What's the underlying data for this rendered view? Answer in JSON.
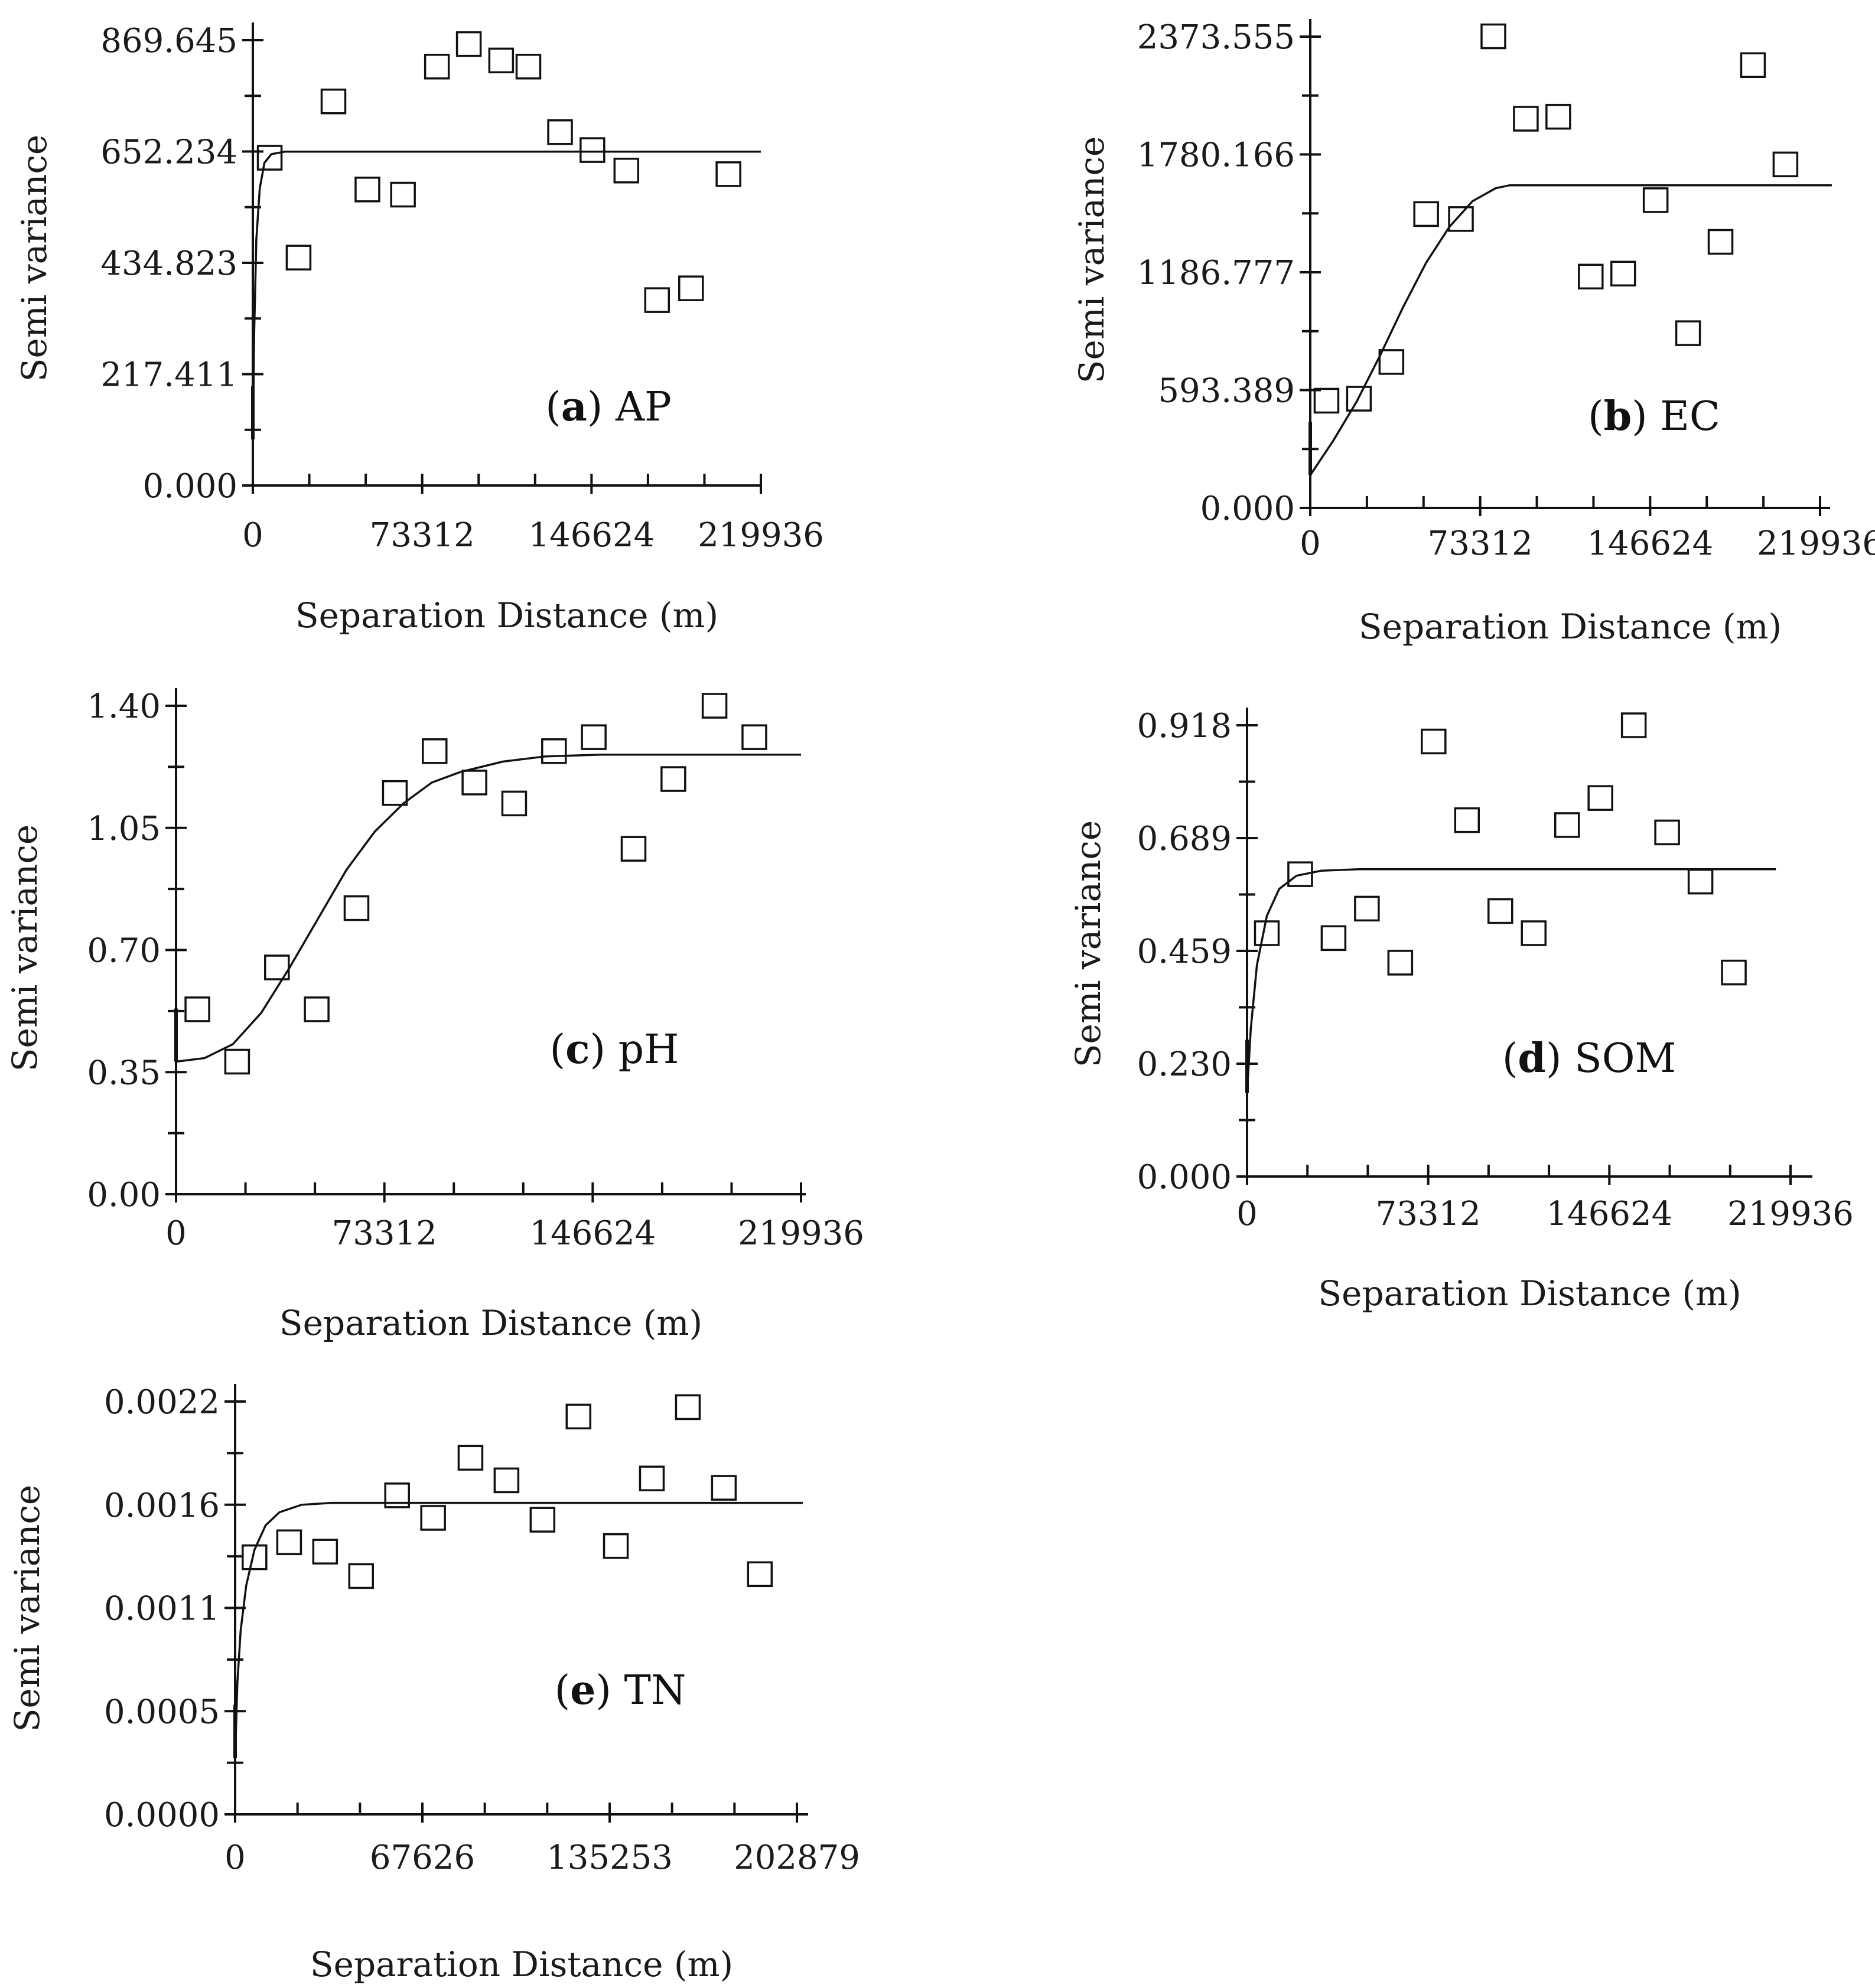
{
  "chart_data": [
    {
      "id": "a",
      "type": "scatter",
      "panel_letter": "a",
      "panel_name": "AP",
      "xlabel": "Separation Distance (m)",
      "ylabel": "Semi variance",
      "xlim": [
        0,
        219936
      ],
      "ylim": [
        0,
        869.645
      ],
      "xticks": [
        "0",
        "73312",
        "146624",
        "219936"
      ],
      "yticks": [
        "0.000",
        "217.411",
        "434.823",
        "652.234",
        "869.645"
      ],
      "grid": false,
      "points": [
        {
          "x": 7300,
          "y": 640
        },
        {
          "x": 19800,
          "y": 445
        },
        {
          "x": 34900,
          "y": 750
        },
        {
          "x": 49600,
          "y": 578
        },
        {
          "x": 65000,
          "y": 568
        },
        {
          "x": 79700,
          "y": 818
        },
        {
          "x": 93500,
          "y": 862
        },
        {
          "x": 107500,
          "y": 830
        },
        {
          "x": 119300,
          "y": 818
        },
        {
          "x": 133000,
          "y": 690
        },
        {
          "x": 147000,
          "y": 655
        },
        {
          "x": 161700,
          "y": 615
        },
        {
          "x": 175000,
          "y": 362
        },
        {
          "x": 189700,
          "y": 385
        },
        {
          "x": 205900,
          "y": 608
        }
      ],
      "model_fit": [
        [
          0,
          90
        ],
        [
          600,
          300
        ],
        [
          1500,
          480
        ],
        [
          3000,
          580
        ],
        [
          5000,
          630
        ],
        [
          8000,
          647
        ],
        [
          14000,
          652
        ],
        [
          219936,
          652
        ]
      ]
    },
    {
      "id": "b",
      "type": "scatter",
      "panel_letter": "b",
      "panel_name": "EC",
      "xlabel": "Separation Distance (m)",
      "ylabel": "Semi variance",
      "xlim": [
        0,
        219936
      ],
      "ylim": [
        0,
        2373.555
      ],
      "xticks": [
        "0",
        "73312",
        "146624",
        "219936"
      ],
      "yticks": [
        "0.000",
        "593.389",
        "1186.777",
        "1780.166",
        "2373.555"
      ],
      "grid": false,
      "points": [
        {
          "x": 7000,
          "y": 540
        },
        {
          "x": 21000,
          "y": 550
        },
        {
          "x": 35000,
          "y": 735
        },
        {
          "x": 50000,
          "y": 1480
        },
        {
          "x": 65000,
          "y": 1455
        },
        {
          "x": 79000,
          "y": 2375
        },
        {
          "x": 93000,
          "y": 1960
        },
        {
          "x": 107000,
          "y": 1970
        },
        {
          "x": 121000,
          "y": 1165
        },
        {
          "x": 135000,
          "y": 1180
        },
        {
          "x": 149000,
          "y": 1550
        },
        {
          "x": 163000,
          "y": 880
        },
        {
          "x": 177000,
          "y": 1340
        },
        {
          "x": 191000,
          "y": 2230
        },
        {
          "x": 205000,
          "y": 1730
        }
      ],
      "model_fit": [
        [
          0,
          165
        ],
        [
          10000,
          340
        ],
        [
          20000,
          535
        ],
        [
          30000,
          765
        ],
        [
          40000,
          1010
        ],
        [
          50000,
          1235
        ],
        [
          60000,
          1415
        ],
        [
          70000,
          1545
        ],
        [
          80000,
          1610
        ],
        [
          86000,
          1625
        ],
        [
          225000,
          1625
        ]
      ]
    },
    {
      "id": "c",
      "type": "scatter",
      "panel_letter": "c",
      "panel_name": "pH",
      "xlabel": "Separation Distance (m)",
      "ylabel": "Semi variance",
      "xlim": [
        0,
        219936
      ],
      "ylim": [
        0,
        1.4
      ],
      "xticks": [
        "0",
        "73312",
        "146624",
        "219936"
      ],
      "yticks": [
        "0.00",
        "0.35",
        "0.70",
        "1.05",
        "1.40"
      ],
      "grid": false,
      "points": [
        {
          "x": 7500,
          "y": 0.53
        },
        {
          "x": 21500,
          "y": 0.38
        },
        {
          "x": 35500,
          "y": 0.65
        },
        {
          "x": 49500,
          "y": 0.53
        },
        {
          "x": 63500,
          "y": 0.82
        },
        {
          "x": 77000,
          "y": 1.15
        },
        {
          "x": 91000,
          "y": 1.27
        },
        {
          "x": 105000,
          "y": 1.18
        },
        {
          "x": 119000,
          "y": 1.12
        },
        {
          "x": 133000,
          "y": 1.27
        },
        {
          "x": 147000,
          "y": 1.31
        },
        {
          "x": 161000,
          "y": 0.99
        },
        {
          "x": 175000,
          "y": 1.19
        },
        {
          "x": 189500,
          "y": 1.4
        },
        {
          "x": 203500,
          "y": 1.31
        }
      ],
      "model_fit": [
        [
          0,
          0.38
        ],
        [
          10000,
          0.39
        ],
        [
          20000,
          0.43
        ],
        [
          30000,
          0.52
        ],
        [
          40000,
          0.65
        ],
        [
          50000,
          0.79
        ],
        [
          60000,
          0.93
        ],
        [
          70000,
          1.04
        ],
        [
          80000,
          1.12
        ],
        [
          90000,
          1.18
        ],
        [
          100000,
          1.21
        ],
        [
          115000,
          1.24
        ],
        [
          130000,
          1.255
        ],
        [
          150000,
          1.26
        ],
        [
          219936,
          1.26
        ]
      ]
    },
    {
      "id": "d",
      "type": "scatter",
      "panel_letter": "d",
      "panel_name": "SOM",
      "xlabel": "Separation Distance (m)",
      "ylabel": "Semi variance",
      "xlim": [
        0,
        219936
      ],
      "ylim": [
        0,
        0.918
      ],
      "xticks": [
        "0",
        "73312",
        "146624",
        "219936"
      ],
      "yticks": [
        "0.000",
        "0.230",
        "0.459",
        "0.689",
        "0.918"
      ],
      "grid": false,
      "points": [
        {
          "x": 8000,
          "y": 0.495
        },
        {
          "x": 21500,
          "y": 0.615
        },
        {
          "x": 35000,
          "y": 0.485
        },
        {
          "x": 48500,
          "y": 0.545
        },
        {
          "x": 62000,
          "y": 0.435
        },
        {
          "x": 75500,
          "y": 0.885
        },
        {
          "x": 89000,
          "y": 0.725
        },
        {
          "x": 102500,
          "y": 0.54
        },
        {
          "x": 116000,
          "y": 0.495
        },
        {
          "x": 129500,
          "y": 0.715
        },
        {
          "x": 143000,
          "y": 0.77
        },
        {
          "x": 156500,
          "y": 0.918
        },
        {
          "x": 170000,
          "y": 0.7
        },
        {
          "x": 183500,
          "y": 0.6
        },
        {
          "x": 197000,
          "y": 0.415
        }
      ],
      "model_fit": [
        [
          0,
          0.17
        ],
        [
          1500,
          0.3
        ],
        [
          4000,
          0.43
        ],
        [
          8000,
          0.53
        ],
        [
          13000,
          0.585
        ],
        [
          20000,
          0.612
        ],
        [
          30000,
          0.622
        ],
        [
          45000,
          0.625
        ],
        [
          214000,
          0.625
        ]
      ]
    },
    {
      "id": "e",
      "type": "scatter",
      "panel_letter": "e",
      "panel_name": "TN",
      "xlabel": "Separation Distance (m)",
      "ylabel": "Semi variance",
      "xlim": [
        0,
        202879
      ],
      "ylim": [
        0,
        0.0022
      ],
      "xticks": [
        "0",
        "67626",
        "135253",
        "202879"
      ],
      "yticks": [
        "0.0000",
        "0.0005",
        "0.0011",
        "0.0016",
        "0.0022"
      ],
      "grid": false,
      "points": [
        {
          "x": 7000,
          "y": 0.00137
        },
        {
          "x": 19500,
          "y": 0.00145
        },
        {
          "x": 32500,
          "y": 0.0014
        },
        {
          "x": 45500,
          "y": 0.00127
        },
        {
          "x": 58500,
          "y": 0.0017
        },
        {
          "x": 71500,
          "y": 0.00158
        },
        {
          "x": 85000,
          "y": 0.0019
        },
        {
          "x": 98000,
          "y": 0.00178
        },
        {
          "x": 111000,
          "y": 0.00157
        },
        {
          "x": 124000,
          "y": 0.00212
        },
        {
          "x": 137500,
          "y": 0.00143
        },
        {
          "x": 150500,
          "y": 0.00179
        },
        {
          "x": 163500,
          "y": 0.00217
        },
        {
          "x": 176500,
          "y": 0.00174
        },
        {
          "x": 189500,
          "y": 0.00128
        }
      ],
      "model_fit": [
        [
          0,
          0.0003
        ],
        [
          800,
          0.0007
        ],
        [
          2000,
          0.00098
        ],
        [
          4000,
          0.00122
        ],
        [
          7000,
          0.00141
        ],
        [
          11000,
          0.00154
        ],
        [
          16000,
          0.00161
        ],
        [
          24000,
          0.00165
        ],
        [
          35000,
          0.00166
        ],
        [
          205000,
          0.00166
        ]
      ]
    }
  ]
}
